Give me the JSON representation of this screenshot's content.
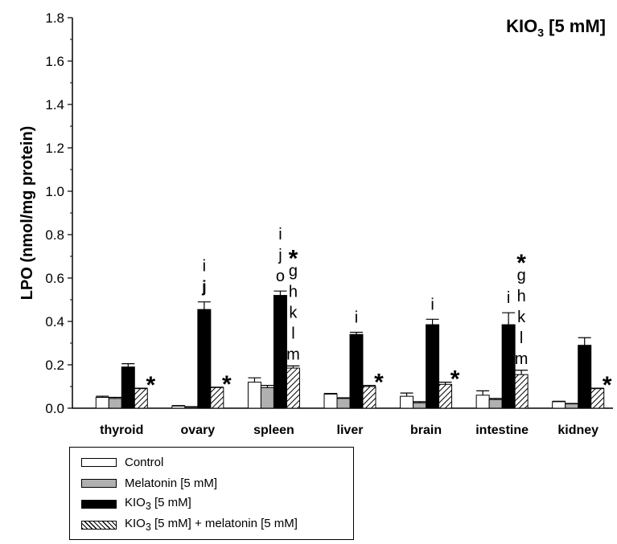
{
  "chart_data": {
    "type": "bar",
    "title_main": "KIO",
    "title_sub": "3",
    "title_rest": " [5 mM]",
    "ylabel": "LPO (nmol/mg protein)",
    "ylim": [
      0,
      1.8
    ],
    "yticks": [
      "0.0",
      "0.2",
      "0.4",
      "0.6",
      "0.8",
      "1.0",
      "1.2",
      "1.4",
      "1.6",
      "1.8"
    ],
    "categories": [
      "thyroid",
      "ovary",
      "spleen",
      "liver",
      "brain",
      "intestine",
      "kidney"
    ],
    "series": [
      {
        "name": "Control",
        "values": [
          0.05,
          0.01,
          0.12,
          0.065,
          0.055,
          0.06,
          0.03
        ],
        "errors": [
          0.005,
          0.002,
          0.02,
          0.003,
          0.015,
          0.02,
          0.002
        ]
      },
      {
        "name": "Melatonin [5 mM]",
        "values": [
          0.045,
          0.005,
          0.095,
          0.045,
          0.025,
          0.04,
          0.02
        ],
        "errors": [
          0.005,
          0.002,
          0.01,
          0.003,
          0.005,
          0.005,
          0.002
        ]
      },
      {
        "name": "KIO3 [5 mM]",
        "values": [
          0.19,
          0.455,
          0.52,
          0.34,
          0.385,
          0.385,
          0.29
        ],
        "errors": [
          0.015,
          0.035,
          0.02,
          0.01,
          0.025,
          0.055,
          0.035
        ]
      },
      {
        "name": "KIO3 [5 mM] + melatonin [5 mM]",
        "values": [
          0.09,
          0.095,
          0.185,
          0.1,
          0.11,
          0.155,
          0.09
        ],
        "errors": [
          0.002,
          0.002,
          0.01,
          0.005,
          0.01,
          0.02,
          0.002
        ]
      }
    ],
    "annotations": {
      "kio3_letters": [
        [],
        [
          "i",
          "j"
        ],
        [
          "i",
          "j",
          "o"
        ],
        [
          "i"
        ],
        [
          "i"
        ],
        [
          "i"
        ],
        []
      ],
      "combo_star": "*",
      "combo_letters": [
        [],
        [],
        [
          "g",
          "h",
          "k",
          "l",
          "m"
        ],
        [],
        [],
        [
          "g",
          "h",
          "k",
          "l",
          "m"
        ],
        []
      ]
    },
    "legend": [
      {
        "label": "Control"
      },
      {
        "label": "Melatonin [5 mM]"
      },
      {
        "label_main": "KIO",
        "label_sub": "3",
        "label_rest": " [5 mM]"
      },
      {
        "label_main": "KIO",
        "label_sub": "3",
        "label_rest": " [5 mM] + melatonin [5 mM]"
      }
    ]
  }
}
